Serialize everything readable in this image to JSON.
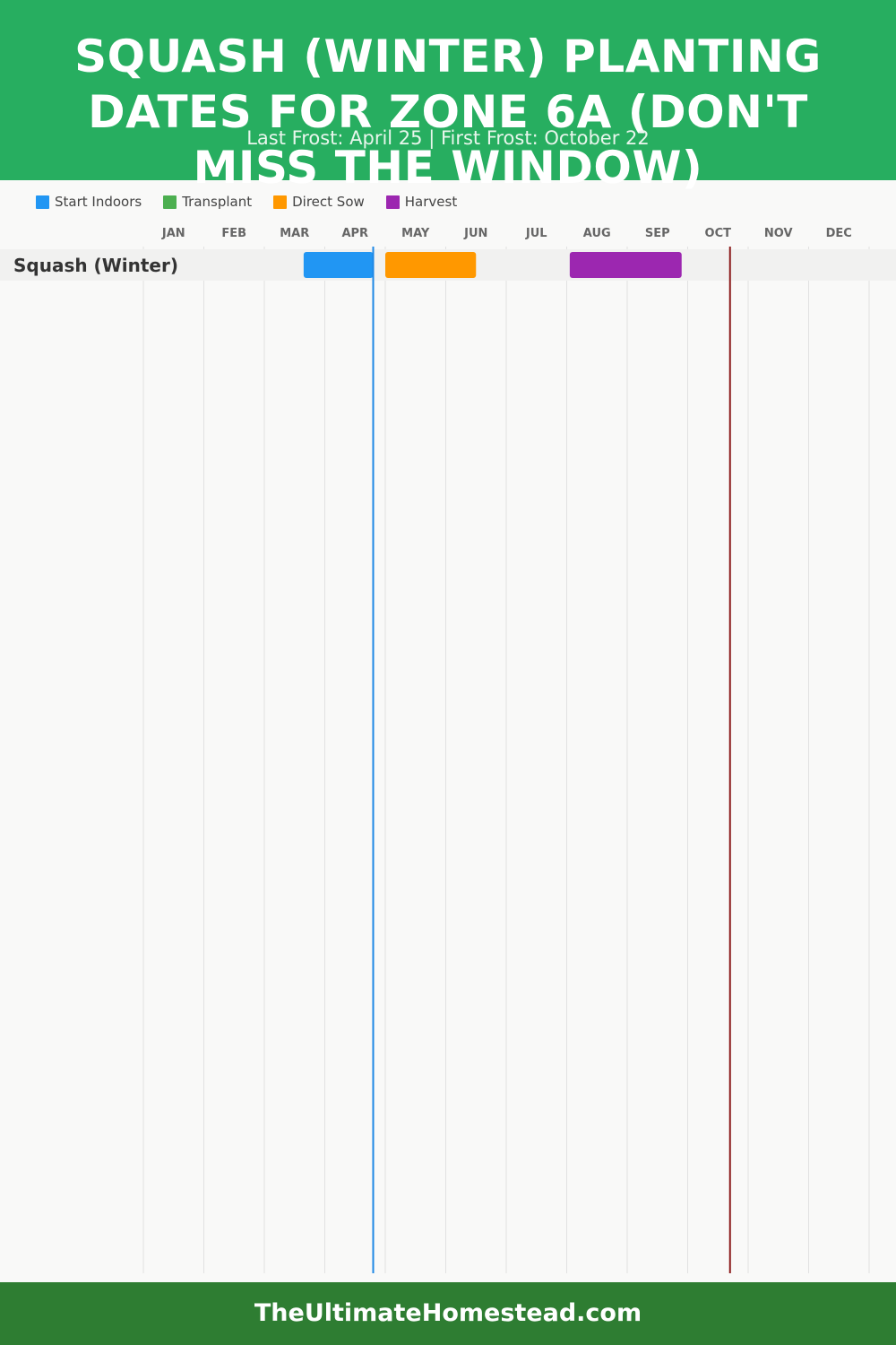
{
  "header": {
    "title": "SQUASH (WINTER) PLANTING DATES FOR ZONE 6A (DON'T MISS THE WINDOW)",
    "subtitle": "Last Frost: April 25 | First Frost: October 22"
  },
  "legend": [
    {
      "label": "Start Indoors",
      "color": "#2196f3"
    },
    {
      "label": "Transplant",
      "color": "#4caf50"
    },
    {
      "label": "Direct Sow",
      "color": "#ff9800"
    },
    {
      "label": "Harvest",
      "color": "#9c27b0"
    }
  ],
  "chart_data": {
    "type": "gantt",
    "months": [
      "JAN",
      "FEB",
      "MAR",
      "APR",
      "MAY",
      "JUN",
      "JUL",
      "AUG",
      "SEP",
      "OCT",
      "NOV",
      "DEC"
    ],
    "rows": [
      {
        "label": "Squash (Winter)",
        "bars": [
          {
            "type": "Start Indoors",
            "start": "Mar 15",
            "end": "Apr 25",
            "start_month": 2.65,
            "end_month": 3.8,
            "color": "#2196f3"
          },
          {
            "type": "Direct Sow",
            "start": "May 5",
            "end": "Jun 15",
            "start_month": 4.0,
            "end_month": 5.5,
            "color": "#ff9800"
          },
          {
            "type": "Harvest",
            "start": "Aug 5",
            "end": "Sep 30",
            "start_month": 7.05,
            "end_month": 8.9,
            "color": "#9c27b0"
          }
        ]
      }
    ],
    "markers": [
      {
        "name": "Last Frost",
        "date": "April 25",
        "month_pos": 3.8,
        "color": "#1e88e5"
      },
      {
        "name": "First Frost",
        "date": "October 22",
        "month_pos": 9.7,
        "color": "#8b1a1a"
      }
    ],
    "grid": true
  },
  "footer": {
    "text": "TheUltimateHomestead.com"
  }
}
